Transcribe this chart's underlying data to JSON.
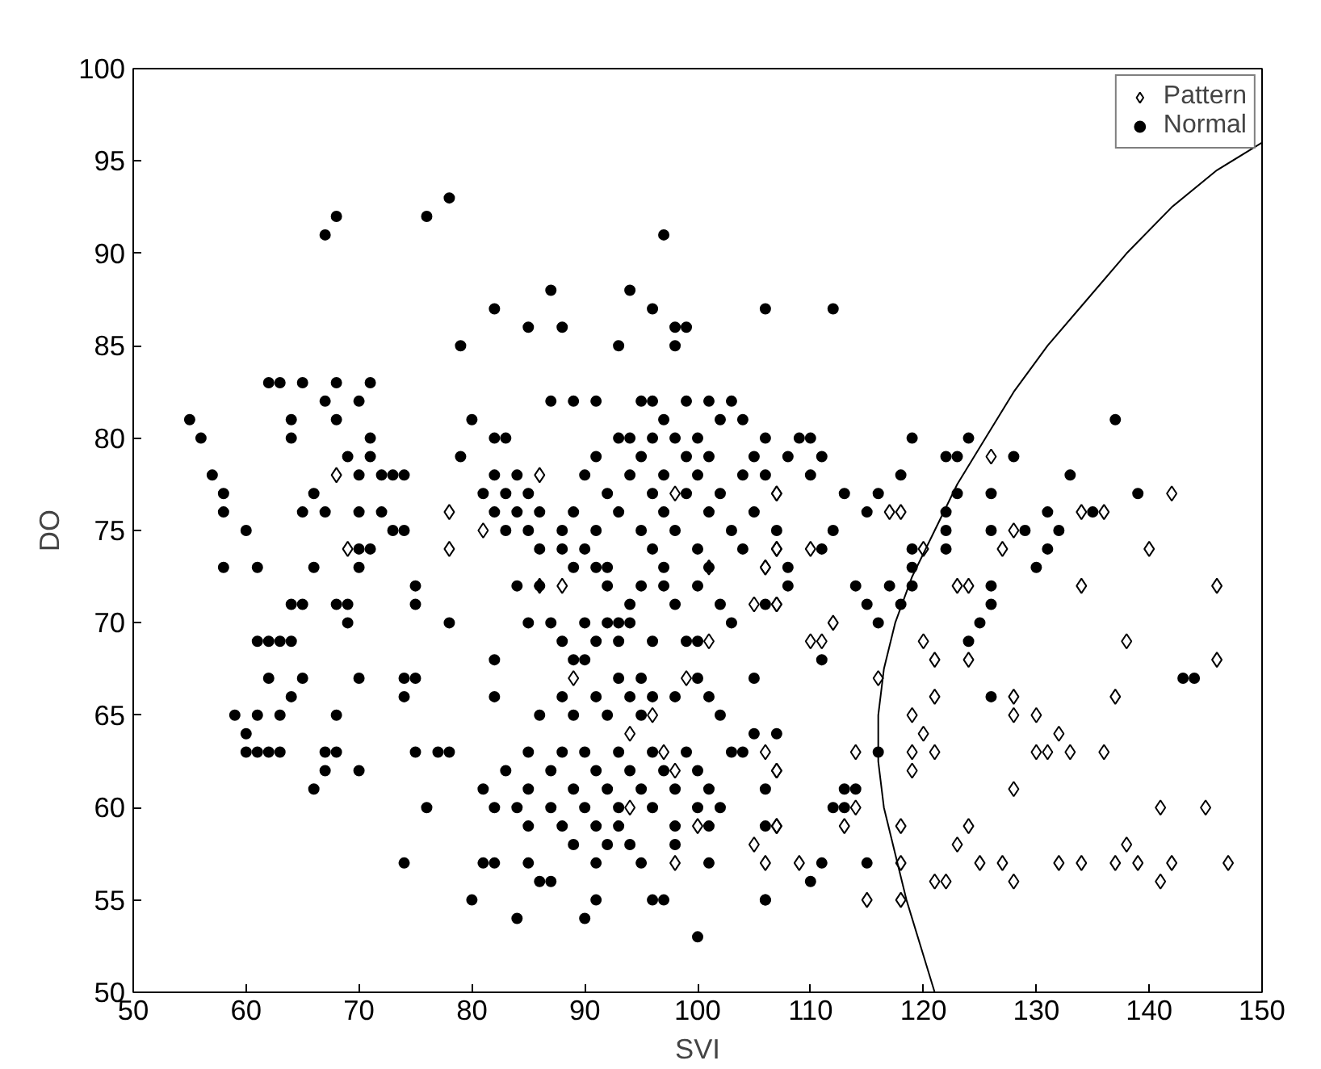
{
  "chart_data": {
    "type": "scatter",
    "xlabel": "SVI",
    "ylabel": "DO",
    "xlim": [
      50,
      150
    ],
    "ylim": [
      50,
      100
    ],
    "xticks": [
      50,
      60,
      70,
      80,
      90,
      100,
      110,
      120,
      130,
      140,
      150
    ],
    "yticks": [
      50,
      55,
      60,
      65,
      70,
      75,
      80,
      85,
      90,
      95,
      100
    ],
    "grid": false,
    "legend": "top right",
    "series": [
      {
        "name": "Pattern",
        "marker": "diamond",
        "color": "#000000",
        "x": [
          126,
          107,
          142,
          118,
          117,
          134,
          136,
          107,
          110,
          120,
          127,
          140,
          128,
          106,
          123,
          124,
          134,
          146,
          107,
          112,
          110,
          111,
          120,
          138,
          121,
          124,
          146,
          116,
          121,
          128,
          137,
          119,
          128,
          130,
          120,
          132,
          114,
          119,
          121,
          130,
          131,
          133,
          136,
          107,
          119,
          128,
          114,
          141,
          145,
          113,
          118,
          107,
          124,
          123,
          138,
          109,
          118,
          125,
          127,
          132,
          134,
          137,
          139,
          142,
          147,
          121,
          122,
          128,
          141,
          115,
          118,
          68,
          86,
          98,
          107,
          78,
          81,
          69,
          78,
          107,
          101,
          106,
          86,
          88,
          105,
          107,
          101,
          89,
          99,
          96,
          94,
          97,
          106,
          98,
          107,
          94,
          100,
          107,
          105,
          98,
          106
        ],
        "values": [
          79,
          77,
          77,
          76,
          76,
          76,
          76,
          74,
          74,
          74,
          74,
          74,
          75,
          73,
          72,
          72,
          72,
          72,
          71,
          70,
          69,
          69,
          69,
          69,
          68,
          68,
          68,
          67,
          66,
          66,
          66,
          65,
          65,
          65,
          64,
          64,
          63,
          63,
          63,
          63,
          63,
          63,
          63,
          62,
          62,
          61,
          60,
          60,
          60,
          59,
          59,
          59,
          59,
          58,
          58,
          57,
          57,
          57,
          57,
          57,
          57,
          57,
          57,
          57,
          57,
          56,
          56,
          56,
          56,
          55,
          55,
          78,
          78,
          77,
          77,
          76,
          75,
          74,
          74,
          74,
          73,
          73,
          72,
          72,
          71,
          71,
          69,
          67,
          67,
          65,
          64,
          63,
          63,
          62,
          62,
          60,
          59,
          59,
          58,
          57,
          57
        ]
      },
      {
        "name": "Normal",
        "marker": "circle",
        "color": "#000000",
        "x": [
          55,
          56,
          57,
          58,
          58,
          60,
          58,
          61,
          59,
          60,
          61,
          62,
          63,
          64,
          62,
          60,
          61,
          62,
          63,
          62,
          63,
          65,
          64,
          64,
          67,
          68,
          70,
          71,
          68,
          69,
          71,
          71,
          70,
          72,
          73,
          74,
          66,
          65,
          67,
          70,
          72,
          73,
          70,
          71,
          66,
          70,
          64,
          65,
          68,
          69,
          69,
          64,
          65,
          70,
          66,
          67,
          67,
          68,
          70,
          61,
          63,
          68,
          67,
          68,
          76,
          78,
          97,
          87,
          94,
          82,
          96,
          106,
          112,
          85,
          88,
          98,
          99,
          79,
          93,
          98,
          74,
          75,
          75,
          74,
          75,
          74,
          74,
          76,
          75,
          77,
          78,
          78,
          80,
          82,
          83,
          79,
          82,
          84,
          81,
          83,
          85,
          84,
          86,
          82,
          83,
          85,
          88,
          86,
          88,
          90,
          92,
          89,
          91,
          86,
          92,
          95,
          84,
          85,
          87,
          90,
          92,
          93,
          94,
          88,
          91,
          93,
          96,
          99,
          100,
          82,
          89,
          90,
          93,
          95,
          100,
          105,
          82,
          88,
          91,
          94,
          96,
          98,
          101,
          86,
          89,
          92,
          95,
          102,
          105,
          107,
          85,
          88,
          90,
          93,
          96,
          99,
          103,
          104,
          83,
          87,
          91,
          94,
          97,
          100,
          81,
          85,
          89,
          92,
          95,
          98,
          101,
          106,
          82,
          84,
          87,
          90,
          93,
          96,
          100,
          102,
          85,
          88,
          91,
          93,
          98,
          101,
          106,
          89,
          92,
          94,
          98,
          81,
          82,
          85,
          91,
          95,
          101,
          86,
          87,
          80,
          91,
          96,
          97,
          106,
          84,
          90,
          100,
          87,
          89,
          91,
          95,
          96,
          99,
          101,
          103,
          97,
          102,
          104,
          93,
          94,
          96,
          98,
          100,
          106,
          91,
          95,
          99,
          101,
          105,
          108,
          90,
          94,
          97,
          100,
          104,
          106,
          92,
          96,
          99,
          102,
          89,
          93,
          97,
          101,
          105,
          91,
          95,
          98,
          103,
          107,
          96,
          100,
          104,
          97,
          101,
          94,
          98,
          102,
          106,
          97,
          100,
          103,
          108,
          109,
          110,
          119,
          124,
          111,
          122,
          123,
          128,
          110,
          118,
          133,
          113,
          116,
          123,
          126,
          139,
          115,
          122,
          135,
          112,
          122,
          126,
          129,
          131,
          132,
          111,
          119,
          122,
          131,
          130,
          108,
          119,
          117,
          119,
          126,
          114,
          115,
          118,
          126,
          116,
          125,
          124,
          111,
          143,
          144,
          126,
          116,
          113,
          114,
          112,
          113,
          111,
          115,
          110,
          106,
          137
        ],
        "values": [
          81,
          80,
          78,
          77,
          76,
          75,
          73,
          73,
          65,
          64,
          69,
          69,
          69,
          69,
          67,
          63,
          63,
          63,
          63,
          83,
          83,
          83,
          81,
          80,
          82,
          83,
          82,
          83,
          81,
          79,
          80,
          79,
          78,
          78,
          78,
          78,
          77,
          76,
          76,
          76,
          76,
          75,
          74,
          74,
          73,
          73,
          71,
          71,
          71,
          71,
          70,
          66,
          67,
          67,
          61,
          62,
          63,
          63,
          62,
          65,
          65,
          65,
          91,
          92,
          92,
          93,
          91,
          88,
          88,
          87,
          87,
          87,
          87,
          86,
          86,
          86,
          86,
          85,
          85,
          85,
          75,
          72,
          71,
          67,
          67,
          66,
          57,
          60,
          63,
          63,
          63,
          70,
          81,
          80,
          80,
          79,
          78,
          78,
          77,
          77,
          77,
          76,
          76,
          76,
          75,
          75,
          75,
          74,
          74,
          74,
          73,
          73,
          73,
          72,
          72,
          72,
          72,
          70,
          70,
          70,
          70,
          70,
          70,
          69,
          69,
          69,
          69,
          69,
          69,
          68,
          68,
          68,
          67,
          67,
          67,
          67,
          66,
          66,
          66,
          66,
          66,
          66,
          66,
          65,
          65,
          65,
          65,
          65,
          64,
          64,
          63,
          63,
          63,
          63,
          63,
          63,
          63,
          63,
          62,
          62,
          62,
          62,
          62,
          62,
          61,
          61,
          61,
          61,
          61,
          61,
          61,
          61,
          60,
          60,
          60,
          60,
          60,
          60,
          60,
          60,
          59,
          59,
          59,
          59,
          59,
          59,
          59,
          58,
          58,
          58,
          58,
          57,
          57,
          57,
          57,
          57,
          57,
          56,
          56,
          55,
          55,
          55,
          55,
          55,
          54,
          54,
          53,
          82,
          82,
          82,
          82,
          82,
          82,
          82,
          82,
          81,
          81,
          81,
          80,
          80,
          80,
          80,
          80,
          80,
          79,
          79,
          79,
          79,
          79,
          79,
          78,
          78,
          78,
          78,
          78,
          78,
          77,
          77,
          77,
          77,
          76,
          76,
          76,
          76,
          76,
          75,
          75,
          75,
          75,
          75,
          74,
          74,
          74,
          73,
          73,
          71,
          71,
          71,
          71,
          72,
          72,
          70,
          72,
          80,
          80,
          80,
          80,
          79,
          79,
          79,
          79,
          78,
          78,
          78,
          77,
          77,
          77,
          77,
          77,
          76,
          76,
          76,
          75,
          75,
          75,
          75,
          76,
          75,
          74,
          74,
          74,
          74,
          73,
          73,
          73,
          72,
          72,
          72,
          72,
          71,
          71,
          71,
          70,
          70,
          69,
          68,
          67,
          67,
          66,
          63,
          61,
          61,
          60,
          60,
          57,
          57,
          56,
          55,
          81
        ]
      },
      {
        "type": "line",
        "color": "#000000",
        "marker": "none",
        "line_style": "solid",
        "x": [
          121,
          120,
          118.5,
          117.5,
          116.5,
          116,
          116,
          116.5,
          117.5,
          119,
          121,
          123,
          125.5,
          128,
          131,
          134.5,
          138,
          142,
          146,
          150
        ],
        "values": [
          50,
          52,
          55,
          57.5,
          60,
          62.5,
          65,
          67.5,
          70,
          72.5,
          75,
          77.5,
          80,
          82.5,
          85,
          87.5,
          90,
          92.5,
          94.5,
          96
        ]
      }
    ]
  }
}
